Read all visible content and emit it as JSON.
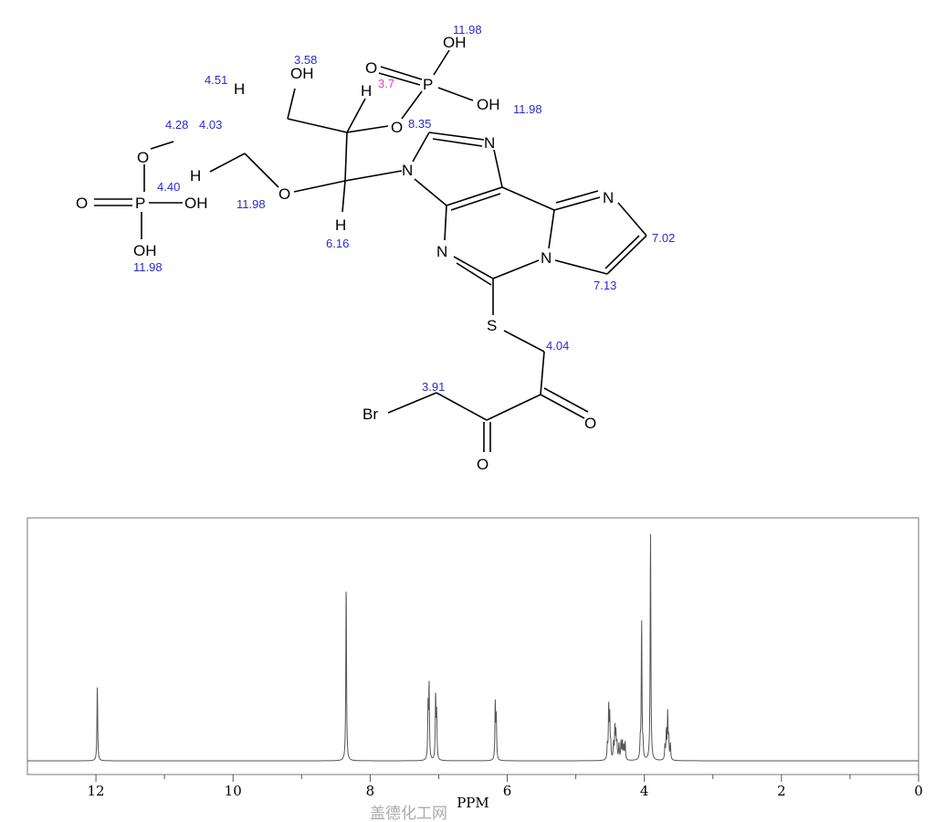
{
  "structure": {
    "atoms": {
      "br": "Br",
      "o": "O",
      "n": "N",
      "s": "S",
      "p": "P",
      "oh": "OH",
      "h": "H"
    },
    "shift_labels": [
      {
        "text": "11.98",
        "color": "#2a2ad0"
      },
      {
        "text": "11.98",
        "color": "#2a2ad0"
      },
      {
        "text": "3.58",
        "color": "#2a2ad0"
      },
      {
        "text": "3.7",
        "color": "#e040c0"
      },
      {
        "text": "4.51",
        "color": "#2a2ad0"
      },
      {
        "text": "4.28",
        "color": "#2a2ad0"
      },
      {
        "text": "4.03",
        "color": "#2a2ad0"
      },
      {
        "text": "8.35",
        "color": "#2a2ad0"
      },
      {
        "text": "4.40",
        "color": "#2a2ad0"
      },
      {
        "text": "11.98",
        "color": "#2a2ad0"
      },
      {
        "text": "11.98",
        "color": "#2a2ad0"
      },
      {
        "text": "6.16",
        "color": "#2a2ad0"
      },
      {
        "text": "7.02",
        "color": "#2a2ad0"
      },
      {
        "text": "7.13",
        "color": "#2a2ad0"
      },
      {
        "text": "4.04",
        "color": "#2a2ad0"
      },
      {
        "text": "3.91",
        "color": "#2a2ad0"
      }
    ]
  },
  "chart_data": {
    "type": "line",
    "title": "",
    "xlabel": "PPM",
    "ylabel": "",
    "xlim": [
      13,
      0
    ],
    "x_reversed": true,
    "xticks": [
      12,
      10,
      8,
      6,
      4,
      2,
      0
    ],
    "minor_xticks": [
      11,
      9,
      7,
      5,
      3,
      1
    ],
    "grid": false,
    "line_color": "#555555",
    "peaks": [
      {
        "ppm": 11.98,
        "intensity": 0.33
      },
      {
        "ppm": 8.35,
        "intensity": 0.78
      },
      {
        "ppm": 7.155,
        "intensity": 0.24
      },
      {
        "ppm": 7.14,
        "intensity": 0.32
      },
      {
        "ppm": 7.045,
        "intensity": 0.28
      },
      {
        "ppm": 7.03,
        "intensity": 0.2
      },
      {
        "ppm": 6.175,
        "intensity": 0.25
      },
      {
        "ppm": 6.16,
        "intensity": 0.18
      },
      {
        "ppm": 4.54,
        "intensity": 0.06
      },
      {
        "ppm": 4.52,
        "intensity": 0.23
      },
      {
        "ppm": 4.505,
        "intensity": 0.18
      },
      {
        "ppm": 4.49,
        "intensity": 0.06
      },
      {
        "ppm": 4.45,
        "intensity": 0.07
      },
      {
        "ppm": 4.43,
        "intensity": 0.14
      },
      {
        "ppm": 4.415,
        "intensity": 0.11
      },
      {
        "ppm": 4.4,
        "intensity": 0.07
      },
      {
        "ppm": 4.37,
        "intensity": 0.07
      },
      {
        "ppm": 4.34,
        "intensity": 0.08
      },
      {
        "ppm": 4.32,
        "intensity": 0.08
      },
      {
        "ppm": 4.3,
        "intensity": 0.06
      },
      {
        "ppm": 4.28,
        "intensity": 0.08
      },
      {
        "ppm": 4.06,
        "intensity": 0.07
      },
      {
        "ppm": 4.04,
        "intensity": 0.61
      },
      {
        "ppm": 4.02,
        "intensity": 0.06
      },
      {
        "ppm": 3.91,
        "intensity": 1.0
      },
      {
        "ppm": 3.7,
        "intensity": 0.06
      },
      {
        "ppm": 3.68,
        "intensity": 0.12
      },
      {
        "ppm": 3.66,
        "intensity": 0.2
      },
      {
        "ppm": 3.645,
        "intensity": 0.09
      },
      {
        "ppm": 3.62,
        "intensity": 0.07
      }
    ]
  },
  "watermark": "盖德化工网"
}
